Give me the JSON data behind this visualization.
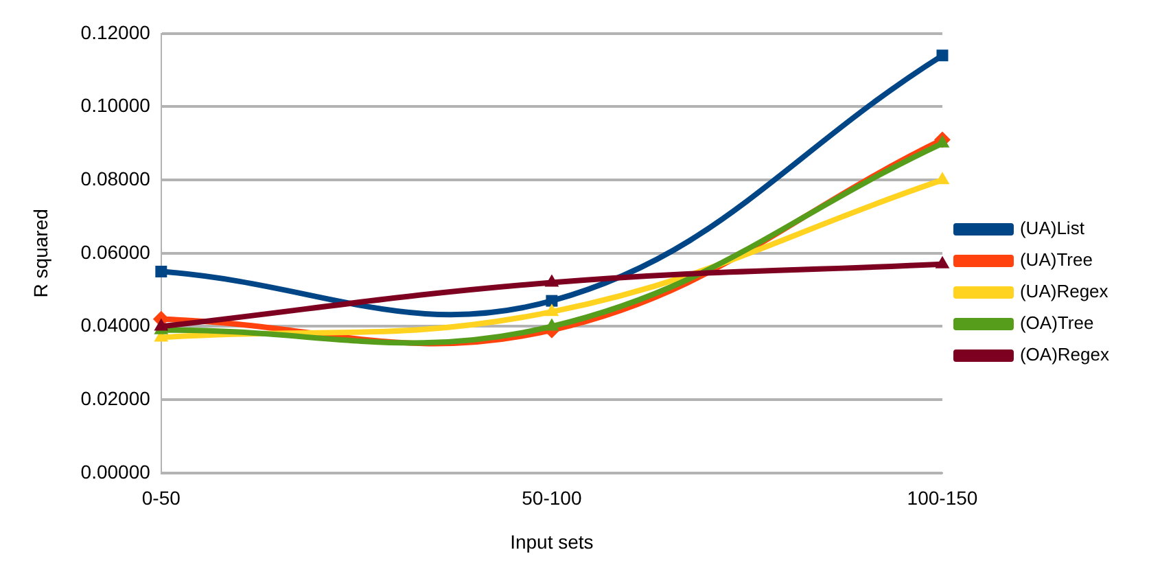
{
  "chart_data": {
    "type": "line",
    "xlabel": "Input sets",
    "ylabel": "R squared",
    "categories": [
      "0-50",
      "50-100",
      "100-150"
    ],
    "series": [
      {
        "name": "(UA)List",
        "color": "#004586",
        "marker": "square",
        "values": [
          0.055,
          0.047,
          0.114
        ]
      },
      {
        "name": "(UA)Tree",
        "color": "#ff420e",
        "marker": "diamond",
        "values": [
          0.042,
          0.039,
          0.091
        ]
      },
      {
        "name": "(UA)Regex",
        "color": "#ffd320",
        "marker": "triangle",
        "values": [
          0.037,
          0.044,
          0.08
        ]
      },
      {
        "name": "(OA)Tree",
        "color": "#579d1c",
        "marker": "triangle",
        "values": [
          0.039,
          0.04,
          0.09
        ]
      },
      {
        "name": "(OA)Regex",
        "color": "#7e0021",
        "marker": "triangle",
        "values": [
          0.04,
          0.052,
          0.057
        ]
      }
    ],
    "ylim": [
      0,
      0.12
    ],
    "yticks": [
      {
        "value": 0,
        "label": "0.00000"
      },
      {
        "value": 0.02,
        "label": "0.02000"
      },
      {
        "value": 0.04,
        "label": "0.04000"
      },
      {
        "value": 0.06,
        "label": "0.06000"
      },
      {
        "value": 0.08,
        "label": "0.08000"
      },
      {
        "value": 0.1,
        "label": "0.10000"
      },
      {
        "value": 0.12,
        "label": "0.12000"
      }
    ],
    "grid": "y",
    "legend": "right"
  }
}
